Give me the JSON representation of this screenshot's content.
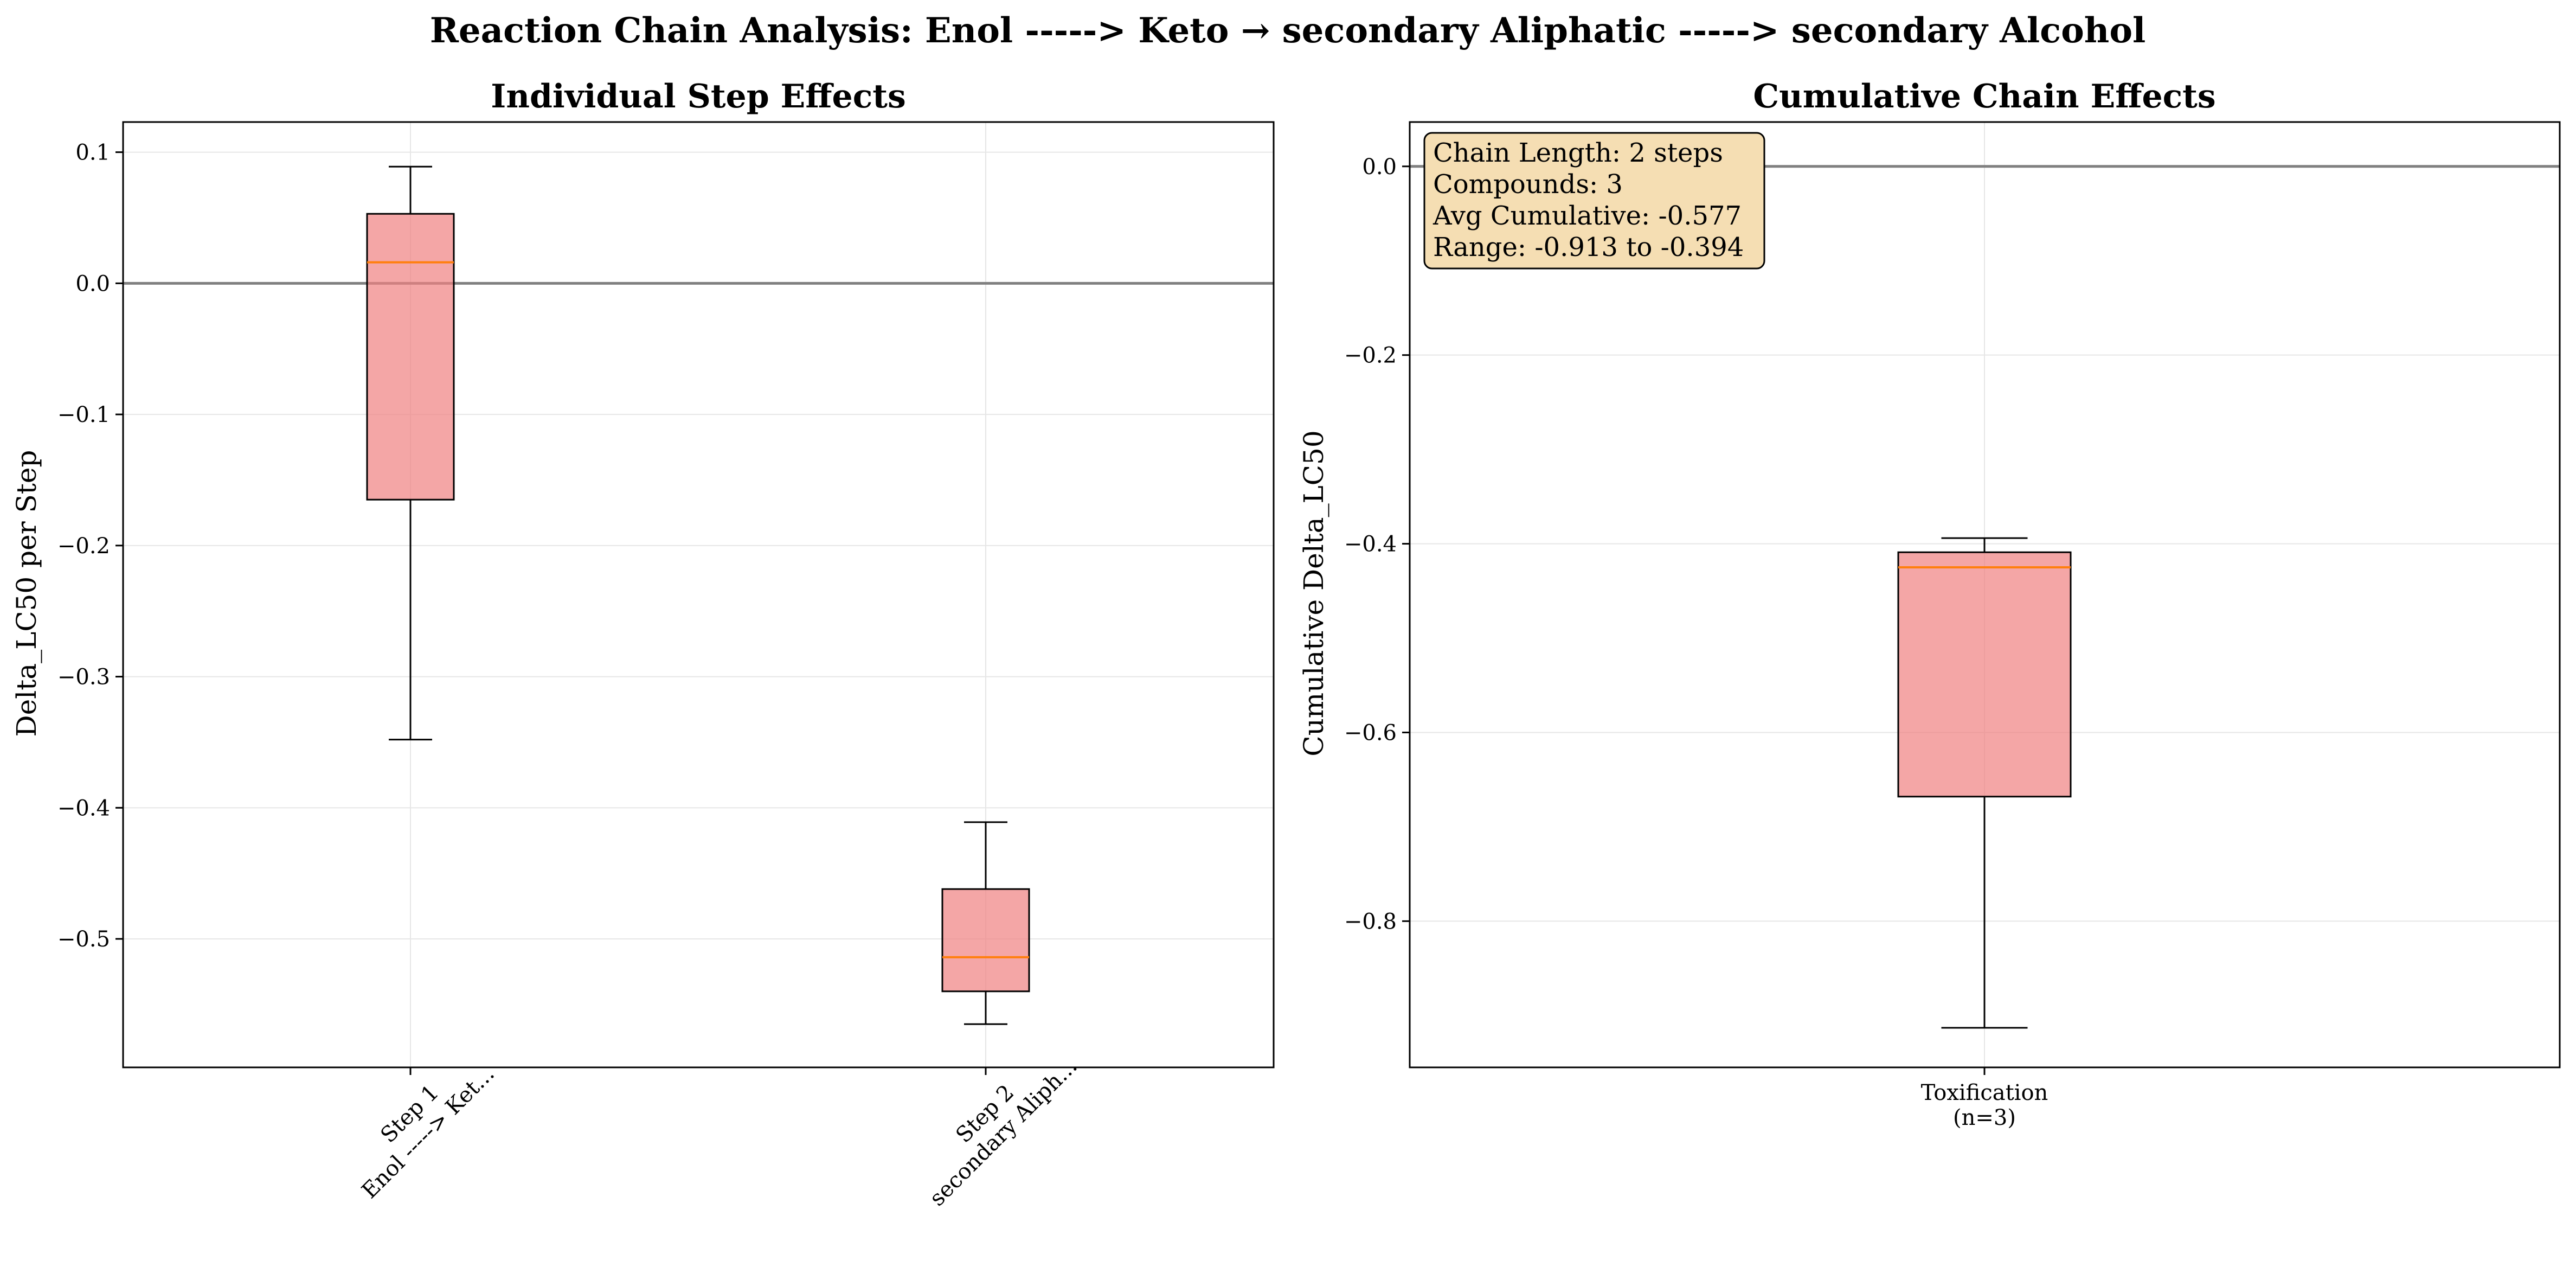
{
  "figure": {
    "suptitle": "Reaction Chain Analysis: Enol -----> Keto → secondary Aliphatic -----> secondary Alcohol"
  },
  "colors": {
    "box_fill": "#f08080",
    "median": "#ff7f0e",
    "zero_line": "#808080",
    "grid": "#e6e6e6",
    "info_bg": "#f5deb3"
  },
  "chart_data": [
    {
      "type": "box",
      "title": "Individual Step Effects",
      "ylabel": "Delta_LC50 per Step",
      "ylim": [
        -0.598,
        0.123
      ],
      "yticks": [
        0.1,
        0.0,
        -0.1,
        -0.2,
        -0.3,
        -0.4,
        -0.5
      ],
      "ytick_labels": [
        "0.1",
        "0.0",
        "−0.1",
        "−0.2",
        "−0.3",
        "−0.4",
        "−0.5"
      ],
      "reference_line": 0.0,
      "grid": true,
      "boxes": [
        {
          "label_line1": "Step 1",
          "label_line2": "Enol -----> Ket...",
          "whisker_low": -0.348,
          "q1": -0.165,
          "median": 0.016,
          "q3": 0.053,
          "whisker_high": 0.089
        },
        {
          "label_line1": "Step 2",
          "label_line2": "secondary Aliph...",
          "whisker_low": -0.565,
          "q1": -0.54,
          "median": -0.514,
          "q3": -0.462,
          "whisker_high": -0.411
        }
      ]
    },
    {
      "type": "box",
      "title": "Cumulative Chain Effects",
      "ylabel": "Cumulative Delta_LC50",
      "ylim": [
        -0.955,
        0.047
      ],
      "yticks": [
        0.0,
        -0.2,
        -0.4,
        -0.6,
        -0.8
      ],
      "ytick_labels": [
        "0.0",
        "−0.2",
        "−0.4",
        "−0.6",
        "−0.8"
      ],
      "reference_line": 0.0,
      "grid": true,
      "boxes": [
        {
          "label_line1": "Toxification",
          "label_line2": "(n=3)",
          "whisker_low": -0.913,
          "q1": -0.668,
          "median": -0.425,
          "q3": -0.409,
          "whisker_high": -0.394
        }
      ],
      "annotation": [
        "Chain Length: 2 steps",
        "Compounds: 3",
        "Avg Cumulative: -0.577",
        "Range: -0.913 to -0.394"
      ]
    }
  ]
}
